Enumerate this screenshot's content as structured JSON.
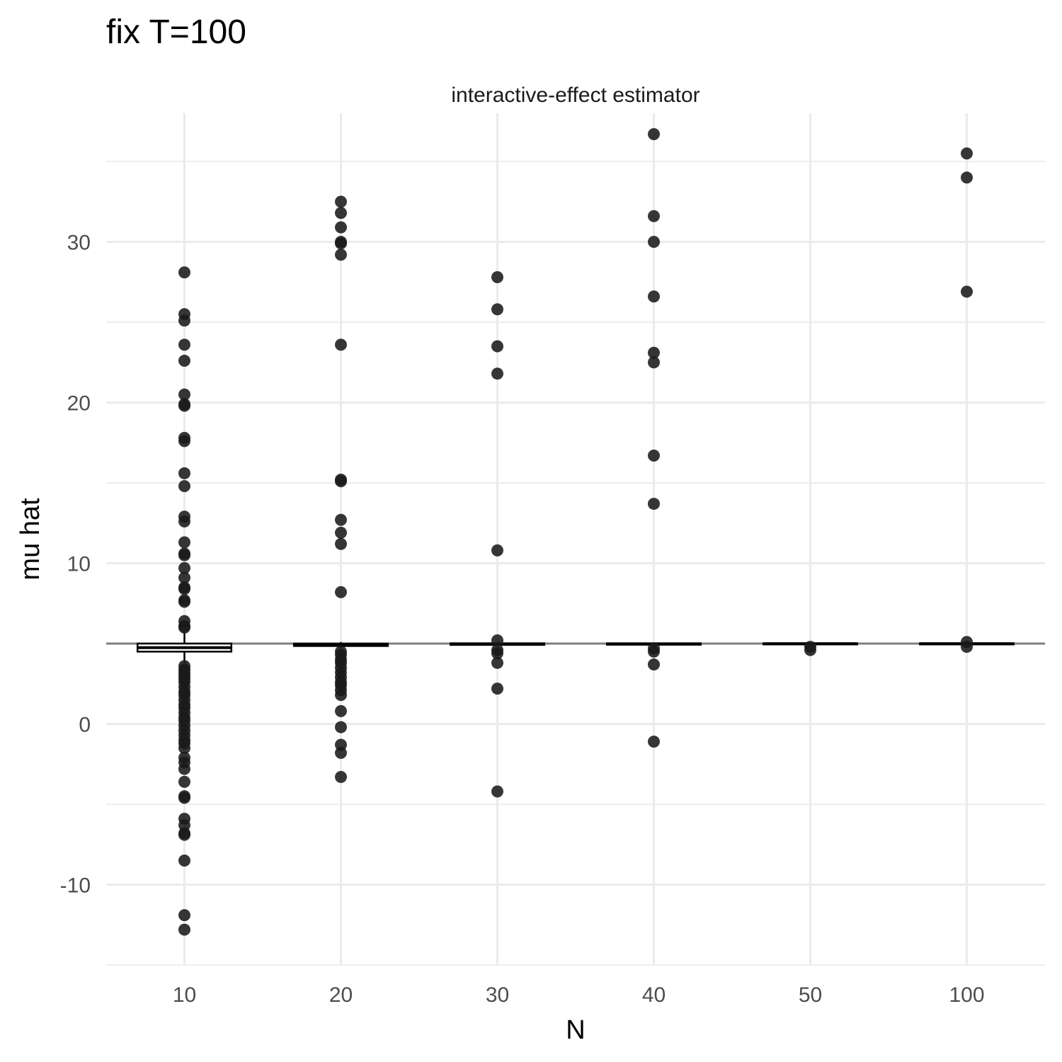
{
  "chart_data": {
    "type": "box",
    "title": "fix T=100",
    "facet_label": "interactive-effect estimator",
    "xlabel": "N",
    "ylabel": "mu hat",
    "categories": [
      "10",
      "20",
      "30",
      "40",
      "50",
      "100"
    ],
    "yticks": [
      -10,
      0,
      10,
      20,
      30
    ],
    "ylim": [
      -15,
      38
    ],
    "reference_line": 5,
    "grid": true,
    "colors": {
      "points": "#1a1a1a",
      "grid": "#ebebeb",
      "reference": "#7f7f7f",
      "box": "#000000"
    },
    "boxes": [
      {
        "category": "10",
        "q1": 4.5,
        "median": 4.75,
        "q3": 5.0,
        "whisker_low": 3.8,
        "whisker_high": 5.8
      },
      {
        "category": "20",
        "q1": 4.85,
        "median": 4.9,
        "q3": 5.0,
        "whisker_low": 4.7,
        "whisker_high": 5.1
      },
      {
        "category": "30",
        "q1": 4.92,
        "median": 4.97,
        "q3": 5.02,
        "whisker_low": 4.85,
        "whisker_high": 5.1
      },
      {
        "category": "40",
        "q1": 4.93,
        "median": 4.98,
        "q3": 5.02,
        "whisker_low": 4.88,
        "whisker_high": 5.08
      },
      {
        "category": "50",
        "q1": 4.95,
        "median": 4.99,
        "q3": 5.02,
        "whisker_low": 4.9,
        "whisker_high": 5.06
      },
      {
        "category": "100",
        "q1": 4.95,
        "median": 4.99,
        "q3": 5.02,
        "whisker_low": 4.9,
        "whisker_high": 5.06
      }
    ],
    "outliers": [
      {
        "category": "10",
        "values": [
          28.1,
          25.5,
          25.1,
          23.6,
          22.6,
          20.5,
          19.9,
          19.8,
          17.8,
          17.6,
          15.6,
          14.8,
          12.9,
          12.6,
          11.3,
          10.6,
          10.5,
          9.7,
          9.1,
          8.5,
          8.4,
          7.7,
          7.6,
          6.4,
          6.1,
          6.0,
          3.6,
          3.4,
          3.2,
          3.0,
          2.8,
          2.6,
          2.3,
          2.0,
          1.8,
          1.5,
          1.2,
          1.0,
          0.7,
          0.4,
          0.2,
          -0.1,
          -0.4,
          -0.7,
          -1.0,
          -1.2,
          -1.5,
          -2.1,
          -2.4,
          -2.8,
          -3.6,
          -4.5,
          -4.6,
          -5.9,
          -6.3,
          -6.8,
          -6.9,
          -8.5,
          -11.9,
          -12.8
        ]
      },
      {
        "category": "20",
        "values": [
          32.5,
          31.8,
          30.9,
          30.0,
          29.9,
          29.2,
          23.6,
          15.2,
          15.1,
          12.7,
          11.9,
          11.2,
          8.2,
          4.5,
          4.3,
          4.0,
          3.8,
          3.5,
          3.2,
          2.9,
          2.6,
          2.4,
          2.1,
          1.8,
          0.8,
          -0.2,
          -1.3,
          -1.8,
          -3.3
        ]
      },
      {
        "category": "30",
        "values": [
          27.8,
          25.8,
          23.5,
          21.8,
          10.8,
          5.2,
          4.6,
          4.4,
          3.8,
          2.2,
          -4.2
        ]
      },
      {
        "category": "40",
        "values": [
          36.7,
          31.6,
          30.0,
          26.6,
          23.1,
          22.5,
          16.7,
          13.7,
          4.7,
          4.5,
          3.7,
          -1.1
        ]
      },
      {
        "category": "50",
        "values": [
          4.8,
          4.6
        ]
      },
      {
        "category": "100",
        "values": [
          35.5,
          34.0,
          26.9,
          5.1,
          4.8
        ]
      }
    ]
  }
}
